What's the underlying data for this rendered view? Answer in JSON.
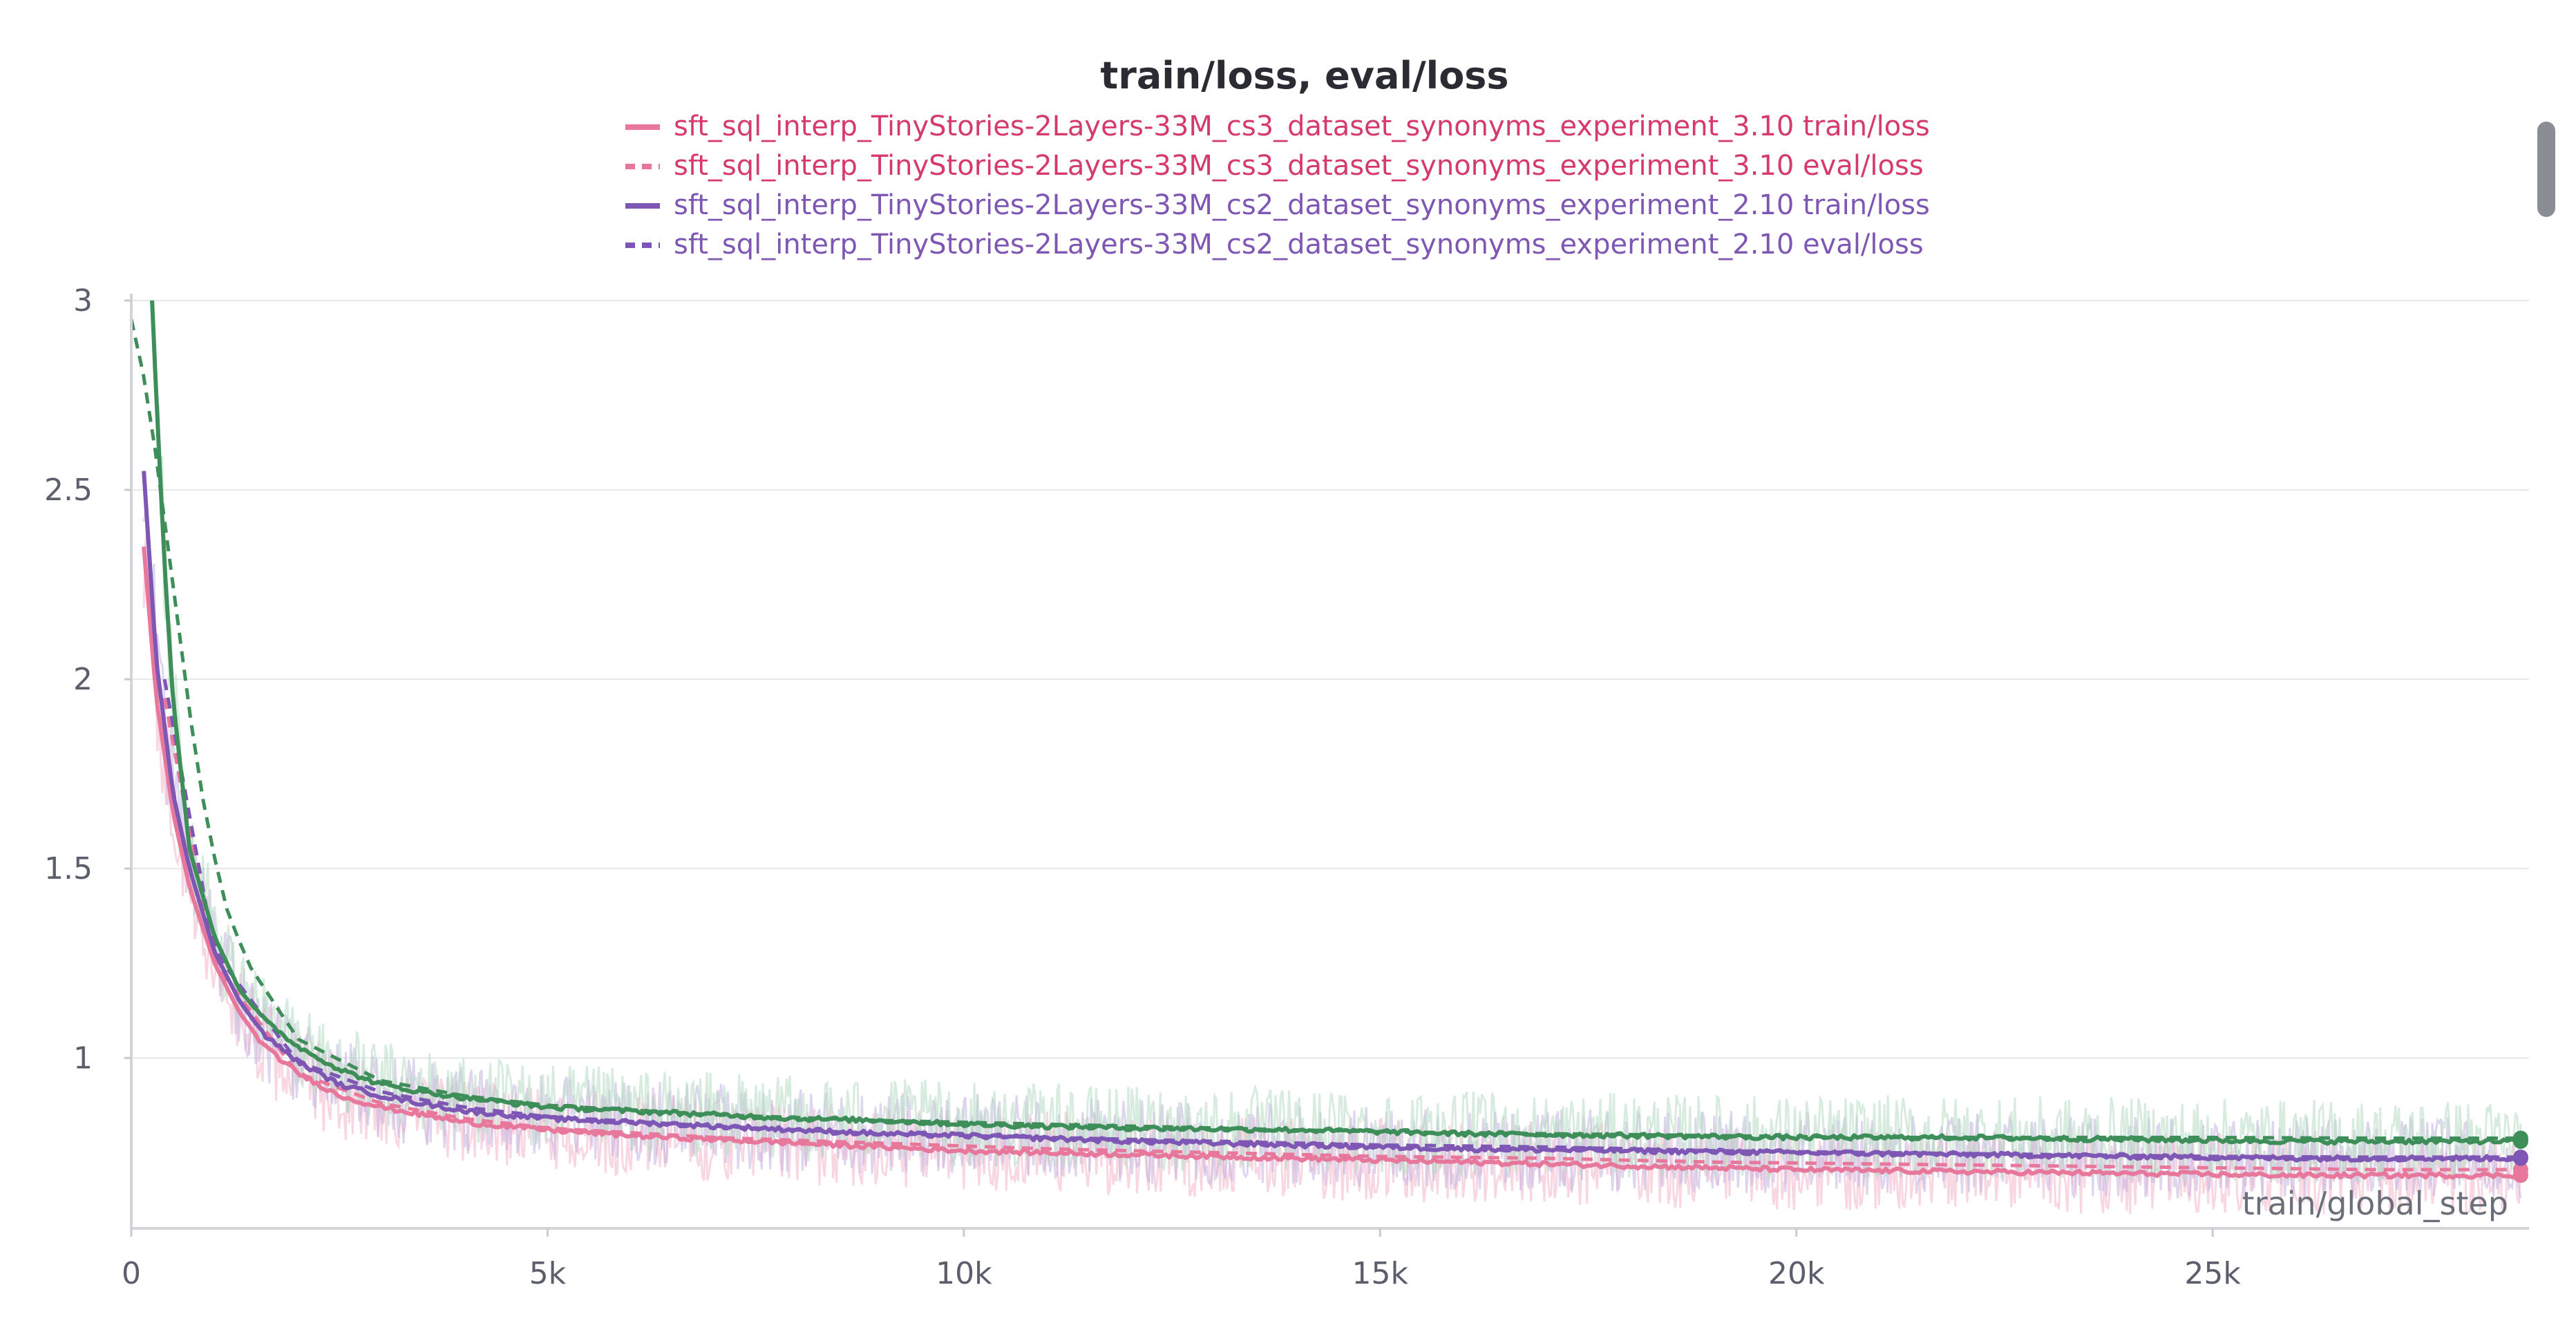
{
  "chart_data": {
    "type": "line",
    "title": "train/loss, eval/loss",
    "xlabel": "train/global_step",
    "ylabel": "",
    "xlim": [
      0,
      28800
    ],
    "ylim": [
      0.55,
      3.0
    ],
    "x_ticks": [
      {
        "value": 0,
        "label": "0"
      },
      {
        "value": 5000,
        "label": "5k"
      },
      {
        "value": 10000,
        "label": "10k"
      },
      {
        "value": 15000,
        "label": "15k"
      },
      {
        "value": 20000,
        "label": "20k"
      },
      {
        "value": 25000,
        "label": "25k"
      }
    ],
    "y_ticks": [
      {
        "value": 1.0,
        "label": "1"
      },
      {
        "value": 1.5,
        "label": "1.5"
      },
      {
        "value": 2.0,
        "label": "2"
      },
      {
        "value": 2.5,
        "label": "2.5"
      },
      {
        "value": 3.0,
        "label": "3"
      }
    ],
    "grid": true,
    "legend_position": "top",
    "legend": [
      {
        "label": "sft_sql_interp_TinyStories-2Layers-33M_cs3_dataset_synonyms_experiment_3.10 train/loss",
        "color": "#e8779c",
        "text_color": "#d63a6b",
        "dash": "solid"
      },
      {
        "label": "sft_sql_interp_TinyStories-2Layers-33M_cs3_dataset_synonyms_experiment_3.10 eval/loss",
        "color": "#e8779c",
        "text_color": "#d63a6b",
        "dash": "dashed"
      },
      {
        "label": "sft_sql_interp_TinyStories-2Layers-33M_cs2_dataset_synonyms_experiment_2.10 train/loss",
        "color": "#7e57b5",
        "text_color": "#7e57b5",
        "dash": "solid"
      },
      {
        "label": "sft_sql_interp_TinyStories-2Layers-33M_cs2_dataset_synonyms_experiment_2.10 eval/loss",
        "color": "#7e57b5",
        "text_color": "#7e57b5",
        "dash": "dashed"
      }
    ],
    "series": [
      {
        "kind": "train",
        "color": "#e8779c",
        "raw_color": "#f2b6cb",
        "dash": "solid",
        "x": [
          150,
          300,
          500,
          700,
          1000,
          1300,
          1600,
          2000,
          2500,
          3000,
          3500,
          4000,
          5000,
          6000,
          7000,
          8000,
          9000,
          10000,
          12000,
          14000,
          16000,
          18000,
          20000,
          22000,
          24000,
          26000,
          28700
        ],
        "y": [
          2.35,
          1.95,
          1.65,
          1.45,
          1.25,
          1.12,
          1.03,
          0.96,
          0.9,
          0.87,
          0.85,
          0.83,
          0.81,
          0.795,
          0.785,
          0.775,
          0.765,
          0.755,
          0.745,
          0.735,
          0.725,
          0.715,
          0.705,
          0.7,
          0.695,
          0.69,
          0.69
        ]
      },
      {
        "kind": "eval",
        "color": "#e8779c",
        "dash": "dashed",
        "x": [
          400,
          1000,
          2000,
          3000,
          4000,
          5000,
          7000,
          9000,
          11000,
          13000,
          15000,
          17000,
          19000,
          21000,
          23000,
          25000,
          27000,
          28700
        ],
        "y": [
          1.95,
          1.25,
          0.96,
          0.88,
          0.84,
          0.815,
          0.79,
          0.775,
          0.76,
          0.75,
          0.74,
          0.735,
          0.725,
          0.72,
          0.715,
          0.71,
          0.705,
          0.705
        ]
      },
      {
        "kind": "train",
        "color": "#7e57b5",
        "raw_color": "#c3b2e0",
        "dash": "solid",
        "x": [
          150,
          300,
          500,
          700,
          1000,
          1300,
          1600,
          2000,
          2500,
          3000,
          3500,
          4000,
          5000,
          6000,
          7000,
          8000,
          9000,
          10000,
          12000,
          14000,
          16000,
          18000,
          20000,
          22000,
          24000,
          26000,
          28700
        ],
        "y": [
          2.55,
          2.05,
          1.7,
          1.5,
          1.28,
          1.15,
          1.06,
          0.99,
          0.93,
          0.9,
          0.88,
          0.86,
          0.84,
          0.83,
          0.82,
          0.81,
          0.8,
          0.795,
          0.78,
          0.77,
          0.76,
          0.755,
          0.75,
          0.745,
          0.74,
          0.735,
          0.735
        ]
      },
      {
        "kind": "eval",
        "color": "#7e57b5",
        "dash": "dashed",
        "x": [
          400,
          1000,
          2000,
          3000,
          4000,
          5000,
          7000,
          9000,
          11000,
          13000,
          15000,
          17000,
          19000,
          21000,
          23000,
          25000,
          27000,
          28700
        ],
        "y": [
          2.0,
          1.28,
          0.99,
          0.91,
          0.87,
          0.845,
          0.82,
          0.8,
          0.79,
          0.78,
          0.77,
          0.765,
          0.755,
          0.75,
          0.745,
          0.74,
          0.738,
          0.738
        ]
      },
      {
        "kind": "train",
        "color": "#3e8e5a",
        "raw_color": "#b7dcc2",
        "dash": "solid",
        "x": [
          250,
          300,
          400,
          500,
          700,
          1000,
          1300,
          1600,
          2000,
          2500,
          3000,
          3500,
          4000,
          5000,
          6000,
          7000,
          8000,
          9000,
          10000,
          12000,
          14000,
          16000,
          18000,
          20000,
          22000,
          24000,
          26000,
          28700
        ],
        "y": [
          3.0,
          2.75,
          2.3,
          1.95,
          1.55,
          1.32,
          1.18,
          1.1,
          1.03,
          0.97,
          0.93,
          0.91,
          0.895,
          0.87,
          0.86,
          0.85,
          0.84,
          0.835,
          0.825,
          0.815,
          0.81,
          0.8,
          0.795,
          0.79,
          0.79,
          0.785,
          0.78,
          0.78
        ]
      },
      {
        "kind": "eval",
        "color": "#3e8e5a",
        "dash": "dashed",
        "x": [
          0,
          200,
          500,
          800,
          1100,
          1400,
          2000,
          3000,
          4000,
          5000,
          7000,
          9000,
          11000,
          13000,
          15000,
          17000,
          19000,
          21000,
          23000,
          25000,
          27000,
          28700
        ],
        "y": [
          2.95,
          2.75,
          2.25,
          1.75,
          1.42,
          1.25,
          1.05,
          0.94,
          0.9,
          0.875,
          0.85,
          0.835,
          0.825,
          0.815,
          0.805,
          0.8,
          0.795,
          0.79,
          0.79,
          0.79,
          0.788,
          0.788
        ]
      }
    ]
  }
}
